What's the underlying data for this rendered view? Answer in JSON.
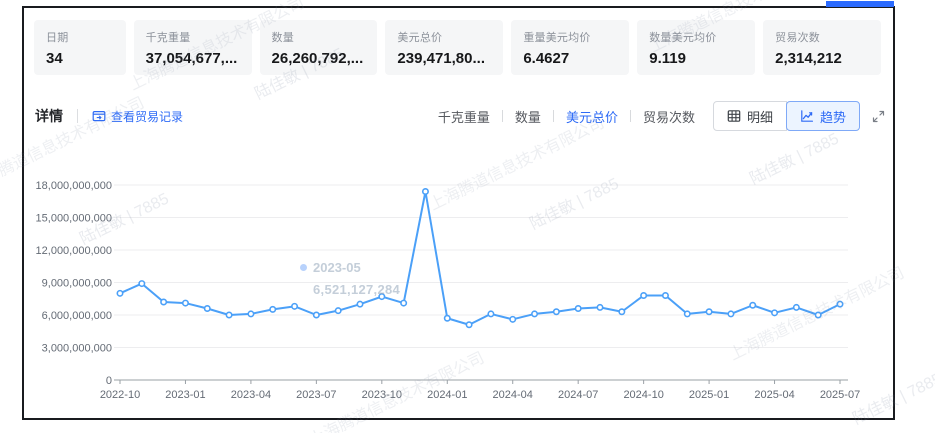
{
  "accent_color": "#2b6bff",
  "line_color": "#4ba0f8",
  "summary_cards": [
    {
      "label": "日期",
      "value": "34"
    },
    {
      "label": "千克重量",
      "value": "37,054,677,..."
    },
    {
      "label": "数量",
      "value": "26,260,792,..."
    },
    {
      "label": "美元总价",
      "value": "239,471,80..."
    },
    {
      "label": "重量美元均价",
      "value": "6.4627"
    },
    {
      "label": "数量美元均价",
      "value": "9.119"
    },
    {
      "label": "贸易次数",
      "value": "2,314,212"
    }
  ],
  "toolbar": {
    "details_label": "详情",
    "view_records_label": "查看贸易记录",
    "metric_tabs": [
      {
        "label": "千克重量",
        "active": false
      },
      {
        "label": "数量",
        "active": false
      },
      {
        "label": "美元总价",
        "active": true
      },
      {
        "label": "贸易次数",
        "active": false
      }
    ],
    "detail_button_label": "明细",
    "trend_button_label": "趋势"
  },
  "tooltip_ghost": {
    "date": "2023-05",
    "value": "6,521,127,284"
  },
  "watermarks": {
    "company": "上海腾道信息技术有限公司",
    "user": "陆佳敏 | 7885"
  },
  "chart_data": {
    "type": "line",
    "title": "",
    "xlabel": "",
    "ylabel": "",
    "legend_position": "none",
    "grid": true,
    "ylim": [
      0,
      18000000000
    ],
    "x_label_every": 3,
    "y_ticks": [
      {
        "value": 0,
        "label": "0"
      },
      {
        "value": 3000000000,
        "label": "3,000,000,000"
      },
      {
        "value": 6000000000,
        "label": "6,000,000,000"
      },
      {
        "value": 9000000000,
        "label": "9,000,000,000"
      },
      {
        "value": 12000000000,
        "label": "12,000,000,000"
      },
      {
        "value": 15000000000,
        "label": "15,000,000,000"
      },
      {
        "value": 18000000000,
        "label": "18,000,000,000"
      }
    ],
    "x": [
      "2022-10",
      "2022-11",
      "2022-12",
      "2023-01",
      "2023-02",
      "2023-03",
      "2023-04",
      "2023-05",
      "2023-06",
      "2023-07",
      "2023-08",
      "2023-09",
      "2023-10",
      "2023-11",
      "2023-12",
      "2024-01",
      "2024-02",
      "2024-03",
      "2024-04",
      "2024-05",
      "2024-06",
      "2024-07",
      "2024-08",
      "2024-09",
      "2024-10",
      "2024-11",
      "2024-12",
      "2025-01",
      "2025-02",
      "2025-03",
      "2025-04",
      "2025-05",
      "2025-06",
      "2025-07"
    ],
    "series": [
      {
        "name": "美元总价",
        "values": [
          8000000000,
          8900000000,
          7200000000,
          7100000000,
          6600000000,
          6000000000,
          6100000000,
          6521127284,
          6800000000,
          6000000000,
          6400000000,
          7000000000,
          7700000000,
          7100000000,
          17400000000,
          5700000000,
          5100000000,
          6100000000,
          5600000000,
          6100000000,
          6300000000,
          6600000000,
          6700000000,
          6300000000,
          7800000000,
          7800000000,
          6100000000,
          6300000000,
          6100000000,
          6900000000,
          6200000000,
          6700000000,
          6000000000,
          7000000000
        ]
      }
    ]
  }
}
